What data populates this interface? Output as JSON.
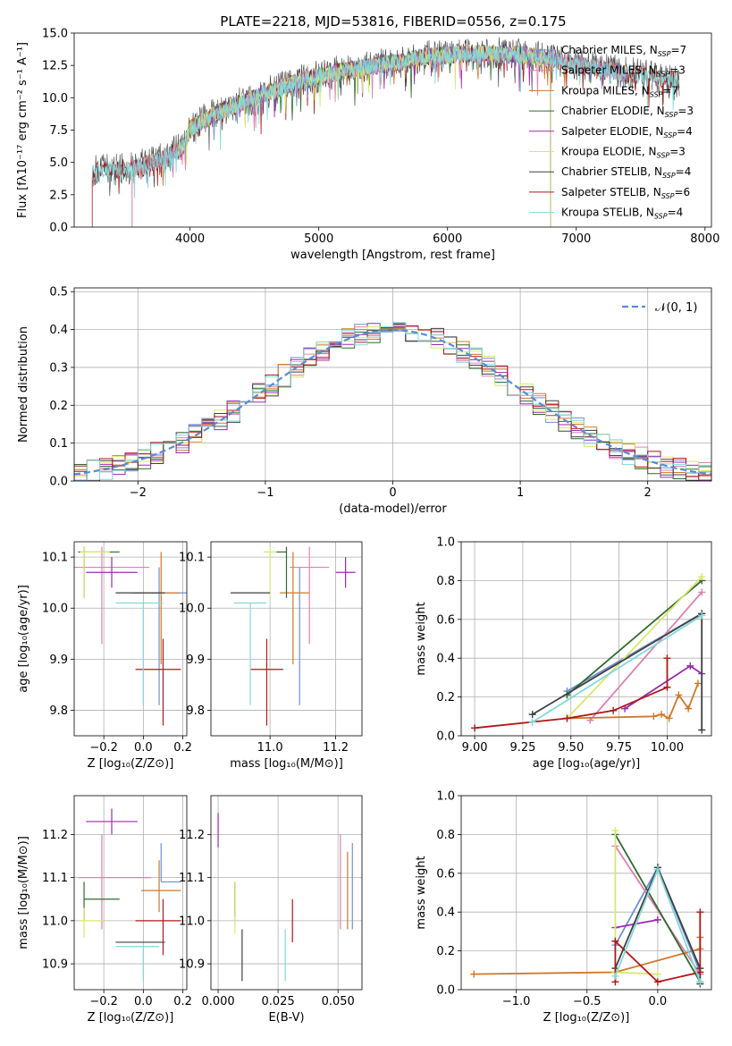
{
  "title": "PLATE=2218, MJD=53816, FIBERID=0556, z=0.175",
  "colors": {
    "Chabrier MILES": "#6f8fd8",
    "Salpeter MILES": "#e080b0",
    "Kroupa MILES": "#d0782a",
    "Chabrier ELODIE": "#2e6b2e",
    "Salpeter ELODIE": "#9a2ab0",
    "Kroupa ELODIE": "#d8e86a",
    "Chabrier STELIB": "#404040",
    "Salpeter STELIB": "#b01818",
    "Kroupa STELIB": "#82d8d8"
  },
  "chart_data": [
    {
      "id": "spectrum",
      "type": "line",
      "title": "PLATE=2218, MJD=53816, FIBERID=0556, z=0.175",
      "xlabel": "wavelength [Angstrom, rest frame]",
      "ylabel": "Flux [fλ10⁻¹⁷ erg cm⁻² s⁻¹ A⁻¹]",
      "xlim": [
        3100,
        8050
      ],
      "ylim": [
        0,
        15
      ],
      "xticks": [
        "4000",
        "5000",
        "6000",
        "7000",
        "8000"
      ],
      "yticks": [
        "0.0",
        "2.5",
        "5.0",
        "7.5",
        "10.0",
        "12.5",
        "15.0"
      ],
      "legend": "top-right",
      "continuum": [
        [
          3240,
          4.3
        ],
        [
          3400,
          4.5
        ],
        [
          3550,
          4.6
        ],
        [
          3700,
          5.0
        ],
        [
          3850,
          5.6
        ],
        [
          3950,
          6.2
        ],
        [
          4000,
          7.6
        ],
        [
          4200,
          8.8
        ],
        [
          4400,
          9.6
        ],
        [
          4600,
          10.4
        ],
        [
          4800,
          11.1
        ],
        [
          5000,
          11.7
        ],
        [
          5200,
          12.1
        ],
        [
          5400,
          12.4
        ],
        [
          5600,
          12.7
        ],
        [
          5800,
          13.1
        ],
        [
          6000,
          13.3
        ],
        [
          6200,
          13.4
        ],
        [
          6400,
          13.4
        ],
        [
          6600,
          13.3
        ],
        [
          6800,
          13.0
        ],
        [
          7000,
          12.6
        ],
        [
          7200,
          12.2
        ],
        [
          7400,
          11.9
        ],
        [
          7600,
          11.6
        ],
        [
          7800,
          11.2
        ]
      ],
      "series": [
        {
          "name": "Chabrier MILES, Nₛₛₚ=7",
          "label": "Chabrier MILES",
          "subscript": "SSP",
          "n": "7",
          "start": 3550,
          "end": 7400
        },
        {
          "name": "Salpeter MILES, Nₛₛₚ=3",
          "label": "Salpeter MILES",
          "subscript": "SSP",
          "n": "3",
          "start": 3550,
          "end": 7400
        },
        {
          "name": "Kroupa MILES, Nₛₛₚ=7",
          "label": "Kroupa MILES",
          "subscript": "SSP",
          "n": "7",
          "start": 3550,
          "end": 7400
        },
        {
          "name": "Chabrier ELODIE, Nₛₛₚ=3",
          "label": "Chabrier ELODIE",
          "subscript": "SSP",
          "n": "3",
          "start": 3900,
          "end": 6800
        },
        {
          "name": "Salpeter ELODIE, Nₛₛₚ=4",
          "label": "Salpeter ELODIE",
          "subscript": "SSP",
          "n": "4",
          "start": 3900,
          "end": 6800
        },
        {
          "name": "Kroupa ELODIE, Nₛₛₚ=3",
          "label": "Kroupa ELODIE",
          "subscript": "SSP",
          "n": "3",
          "start": 3900,
          "end": 6800
        },
        {
          "name": "Chabrier STELIB, Nₛₛₚ=4",
          "label": "Chabrier STELIB",
          "subscript": "SSP",
          "n": "4",
          "start": 3240,
          "end": 7800
        },
        {
          "name": "Salpeter STELIB, Nₛₛₚ=6",
          "label": "Salpeter STELIB",
          "subscript": "SSP",
          "n": "6",
          "start": 3240,
          "end": 7800
        },
        {
          "name": "Kroupa STELIB, Nₛₛₚ=4",
          "label": "Kroupa STELIB",
          "subscript": "SSP",
          "n": "4",
          "start": 3240,
          "end": 7800
        }
      ]
    },
    {
      "id": "residuals",
      "type": "line",
      "xlabel": "(data-model)/error",
      "ylabel": "Normed distribution",
      "xlim": [
        -2.5,
        2.5
      ],
      "ylim": [
        0,
        0.51
      ],
      "xticks": [
        "−2",
        "−1",
        "0",
        "1",
        "2"
      ],
      "yticks": [
        "0.0",
        "0.1",
        "0.2",
        "0.3",
        "0.4",
        "0.5"
      ],
      "grid": true,
      "legend": "top-right",
      "legend_label": "𝒩(0, 1)",
      "bin_width": 0.1
    },
    {
      "id": "age_vs_Z",
      "type": "scatter",
      "xlabel": "Z [log₁₀(Z/Z⊙)]",
      "ylabel": "age  [log₁₀(age/yr)]",
      "xlim": [
        -0.35,
        0.22
      ],
      "ylim": [
        9.75,
        10.13
      ],
      "xticks": [
        "−0.2",
        "0.0",
        "0.2"
      ],
      "yticks": [
        "9.8",
        "9.9",
        "10.0",
        "10.1"
      ],
      "grid": true,
      "points": [
        {
          "model": "Chabrier MILES",
          "x": 0.08,
          "y": 10.03,
          "xerr": [
            0.14,
            0.14
          ],
          "yerr": [
            0.22,
            0.05
          ]
        },
        {
          "model": "Salpeter MILES",
          "x": -0.21,
          "y": 10.08,
          "xerr": [
            0.14,
            0.24
          ],
          "yerr": [
            0.15,
            0.04
          ]
        },
        {
          "model": "Kroupa MILES",
          "x": 0.09,
          "y": 10.03,
          "xerr": [
            0.14,
            0.09
          ],
          "yerr": [
            0.14,
            0.08
          ]
        },
        {
          "model": "Chabrier ELODIE",
          "x": -0.3,
          "y": 10.11,
          "xerr": [
            0.03,
            0.18
          ],
          "yerr": [
            0.09,
            0.01
          ]
        },
        {
          "model": "Salpeter ELODIE",
          "x": -0.16,
          "y": 10.07,
          "xerr": [
            0.13,
            0.13
          ],
          "yerr": [
            0.03,
            0.03
          ]
        },
        {
          "model": "Kroupa ELODIE",
          "x": -0.3,
          "y": 10.11,
          "xerr": [
            0.02,
            0.13
          ],
          "yerr": [
            0.09,
            0.01
          ]
        },
        {
          "model": "Chabrier STELIB",
          "x": 0.0,
          "y": 10.03,
          "xerr": [
            0.14,
            0.11
          ],
          "yerr": [
            0.0,
            0.0
          ]
        },
        {
          "model": "Salpeter STELIB",
          "x": 0.1,
          "y": 9.88,
          "xerr": [
            0.14,
            0.09
          ],
          "yerr": [
            0.11,
            0.06
          ]
        },
        {
          "model": "Kroupa STELIB",
          "x": 0.0,
          "y": 10.01,
          "xerr": [
            0.14,
            0.1
          ],
          "yerr": [
            0.2,
            0.0
          ]
        }
      ]
    },
    {
      "id": "age_vs_mass",
      "type": "scatter",
      "xlabel": "mass [log₁₀(M/M⊙)]",
      "ylabel": "",
      "xlim": [
        10.82,
        11.28
      ],
      "ylim": [
        9.75,
        10.13
      ],
      "xticks": [
        "11.0",
        "11.2"
      ],
      "yticks": [
        "9.8",
        "9.9",
        "10.0",
        "10.1"
      ],
      "grid": true,
      "points": [
        {
          "model": "Chabrier MILES",
          "x": 11.09,
          "y": 10.03,
          "xerr": [
            0.0,
            0.0
          ],
          "yerr": [
            0.22,
            0.05
          ]
        },
        {
          "model": "Salpeter MILES",
          "x": 11.12,
          "y": 10.08,
          "xerr": [
            0.06,
            0.06
          ],
          "yerr": [
            0.15,
            0.04
          ]
        },
        {
          "model": "Kroupa MILES",
          "x": 11.07,
          "y": 10.03,
          "xerr": [
            0.04,
            0.05
          ],
          "yerr": [
            0.14,
            0.08
          ]
        },
        {
          "model": "Chabrier ELODIE",
          "x": 11.05,
          "y": 10.11,
          "xerr": [
            0.03,
            0.0
          ],
          "yerr": [
            0.09,
            0.01
          ]
        },
        {
          "model": "Salpeter ELODIE",
          "x": 11.23,
          "y": 10.07,
          "xerr": [
            0.03,
            0.03
          ],
          "yerr": [
            0.03,
            0.03
          ]
        },
        {
          "model": "Kroupa ELODIE",
          "x": 11.0,
          "y": 10.11,
          "xerr": [
            0.02,
            0.02
          ],
          "yerr": [
            0.09,
            0.01
          ]
        },
        {
          "model": "Chabrier STELIB",
          "x": 10.95,
          "y": 10.03,
          "xerr": [
            0.07,
            0.05
          ],
          "yerr": [
            0.0,
            0.0
          ]
        },
        {
          "model": "Salpeter STELIB",
          "x": 10.99,
          "y": 9.88,
          "xerr": [
            0.05,
            0.05
          ],
          "yerr": [
            0.11,
            0.06
          ]
        },
        {
          "model": "Kroupa STELIB",
          "x": 10.94,
          "y": 10.01,
          "xerr": [
            0.05,
            0.05
          ],
          "yerr": [
            0.2,
            0.0
          ]
        }
      ]
    },
    {
      "id": "mass_weight_vs_age",
      "type": "line",
      "xlabel": "age  [log₁₀(age/yr)]",
      "ylabel": "mass weight",
      "xlim": [
        8.93,
        10.23
      ],
      "ylim": [
        0,
        1
      ],
      "xticks": [
        "9.00",
        "9.25",
        "9.50",
        "9.75",
        "10.00"
      ],
      "yticks": [
        "0.0",
        "0.2",
        "0.4",
        "0.6",
        "0.8",
        "1.0"
      ],
      "grid": true,
      "series": [
        {
          "model": "Chabrier MILES",
          "x": [
            9.48,
            10.18
          ],
          "y": [
            0.23,
            0.63
          ]
        },
        {
          "model": "Salpeter MILES",
          "x": [
            9.6,
            10.18
          ],
          "y": [
            0.08,
            0.74
          ]
        },
        {
          "model": "Kroupa MILES",
          "x": [
            9.48,
            9.93,
            9.97,
            10.01,
            10.06,
            10.11,
            10.16
          ],
          "y": [
            0.09,
            0.1,
            0.11,
            0.09,
            0.21,
            0.14,
            0.27
          ]
        },
        {
          "model": "Chabrier ELODIE",
          "x": [
            9.48,
            10.18
          ],
          "y": [
            0.21,
            0.8
          ]
        },
        {
          "model": "Salpeter ELODIE",
          "x": [
            9.78,
            10.12,
            10.18
          ],
          "y": [
            0.14,
            0.36,
            0.32
          ]
        },
        {
          "model": "Kroupa ELODIE",
          "x": [
            9.48,
            10.18
          ],
          "y": [
            0.09,
            0.82
          ]
        },
        {
          "model": "Chabrier STELIB",
          "x": [
            9.3,
            10.18,
            10.18
          ],
          "y": [
            0.11,
            0.63,
            0.03
          ]
        },
        {
          "model": "Salpeter STELIB",
          "x": [
            9.0,
            9.48,
            9.72,
            10.0,
            10.0
          ],
          "y": [
            0.04,
            0.09,
            0.13,
            0.25,
            0.4
          ]
        },
        {
          "model": "Kroupa STELIB",
          "x": [
            9.3,
            10.18
          ],
          "y": [
            0.07,
            0.62
          ]
        }
      ]
    },
    {
      "id": "mass_vs_Z",
      "type": "scatter",
      "xlabel": "Z [log₁₀(Z/Z⊙)]",
      "ylabel": "mass [log₁₀(M/M⊙)]",
      "xlim": [
        -0.35,
        0.22
      ],
      "ylim": [
        10.84,
        11.29
      ],
      "xticks": [
        "−0.2",
        "0.0",
        "0.2"
      ],
      "yticks": [
        "10.9",
        "11.0",
        "11.1",
        "11.2"
      ],
      "grid": true,
      "points": [
        {
          "model": "Chabrier MILES",
          "x": 0.09,
          "y": 11.09,
          "xerr": [
            0.0,
            0.1
          ],
          "yerr": [
            0.0,
            0.09
          ]
        },
        {
          "model": "Salpeter MILES",
          "x": -0.21,
          "y": 11.1,
          "xerr": [
            0.12,
            0.25
          ],
          "yerr": [
            0.12,
            0.1
          ]
        },
        {
          "model": "Kroupa MILES",
          "x": 0.08,
          "y": 11.07,
          "xerr": [
            0.09,
            0.11
          ],
          "yerr": [
            0.05,
            0.07
          ]
        },
        {
          "model": "Chabrier ELODIE",
          "x": -0.3,
          "y": 11.05,
          "xerr": [
            0.0,
            0.18
          ],
          "yerr": [
            0.05,
            0.04
          ]
        },
        {
          "model": "Salpeter ELODIE",
          "x": -0.16,
          "y": 11.23,
          "xerr": [
            0.13,
            0.13
          ],
          "yerr": [
            0.03,
            0.03
          ]
        },
        {
          "model": "Kroupa ELODIE",
          "x": -0.3,
          "y": 11.0,
          "xerr": [
            0.02,
            0.1
          ],
          "yerr": [
            0.04,
            0.03
          ]
        },
        {
          "model": "Chabrier STELIB",
          "x": 0.0,
          "y": 10.95,
          "xerr": [
            0.14,
            0.11
          ],
          "yerr": [
            0.0,
            0.0
          ]
        },
        {
          "model": "Salpeter STELIB",
          "x": 0.1,
          "y": 11.0,
          "xerr": [
            0.14,
            0.09
          ],
          "yerr": [
            0.08,
            0.05
          ]
        },
        {
          "model": "Kroupa STELIB",
          "x": 0.0,
          "y": 10.94,
          "xerr": [
            0.14,
            0.08
          ],
          "yerr": [
            0.08,
            0.0
          ]
        }
      ]
    },
    {
      "id": "mass_vs_ebv",
      "type": "scatter",
      "xlabel": "E(B-V)",
      "ylabel": "",
      "xlim": [
        -0.003,
        0.06
      ],
      "ylim": [
        10.84,
        11.29
      ],
      "xticks": [
        "0.000",
        "0.025",
        "0.050"
      ],
      "yticks": [
        "10.9",
        "11.0",
        "11.1",
        "11.2"
      ],
      "grid": true,
      "points": [
        {
          "model": "Chabrier MILES",
          "x": 0.056,
          "y": 11.08,
          "xerr": [
            0.0,
            0.0
          ],
          "yerr": [
            0.1,
            0.1
          ]
        },
        {
          "model": "Salpeter MILES",
          "x": 0.051,
          "y": 11.1,
          "xerr": [
            0.0,
            0.0
          ],
          "yerr": [
            0.12,
            0.1
          ]
        },
        {
          "model": "Kroupa MILES",
          "x": 0.054,
          "y": 11.07,
          "xerr": [
            0.0,
            0.0
          ],
          "yerr": [
            0.09,
            0.09
          ]
        },
        {
          "model": "Chabrier ELODIE",
          "x": 0.007,
          "y": 11.05,
          "xerr": [
            0.0,
            0.0
          ],
          "yerr": [
            0.04,
            0.04
          ]
        },
        {
          "model": "Salpeter ELODIE",
          "x": 0.0,
          "y": 11.21,
          "xerr": [
            0.0,
            0.0
          ],
          "yerr": [
            0.04,
            0.04
          ]
        },
        {
          "model": "Kroupa ELODIE",
          "x": 0.007,
          "y": 11.03,
          "xerr": [
            0.0,
            0.0
          ],
          "yerr": [
            0.06,
            0.06
          ]
        },
        {
          "model": "Chabrier STELIB",
          "x": 0.01,
          "y": 10.92,
          "xerr": [
            0.0,
            0.0
          ],
          "yerr": [
            0.06,
            0.06
          ]
        },
        {
          "model": "Salpeter STELIB",
          "x": 0.031,
          "y": 11.0,
          "xerr": [
            0.0,
            0.0
          ],
          "yerr": [
            0.05,
            0.05
          ]
        },
        {
          "model": "Kroupa STELIB",
          "x": 0.028,
          "y": 10.92,
          "xerr": [
            0.0,
            0.0
          ],
          "yerr": [
            0.06,
            0.06
          ]
        }
      ]
    },
    {
      "id": "mass_weight_vs_Z",
      "type": "line",
      "xlabel": "Z [log₁₀(Z/Z⊙)]",
      "ylabel": "mass weight",
      "xlim": [
        -1.39,
        0.38
      ],
      "ylim": [
        0,
        1
      ],
      "xticks": [
        "−1.0",
        "−0.5",
        "0.0"
      ],
      "yticks": [
        "0.0",
        "0.2",
        "0.4",
        "0.6",
        "0.8",
        "1.0"
      ],
      "grid": true,
      "series": [
        {
          "model": "Chabrier MILES",
          "x": [
            -0.3,
            0.0,
            0.3
          ],
          "y": [
            0.23,
            0.63,
            0.09
          ]
        },
        {
          "model": "Salpeter MILES",
          "x": [
            -0.3,
            0.3
          ],
          "y": [
            0.74,
            0.08
          ]
        },
        {
          "model": "Kroupa MILES",
          "x": [
            -1.3,
            -0.3,
            0.3,
            0.3
          ],
          "y": [
            0.08,
            0.09,
            0.21,
            0.27
          ]
        },
        {
          "model": "Chabrier ELODIE",
          "x": [
            -0.3,
            0.3
          ],
          "y": [
            0.8,
            0.04
          ]
        },
        {
          "model": "Salpeter ELODIE",
          "x": [
            -0.3,
            0.0
          ],
          "y": [
            0.32,
            0.36
          ]
        },
        {
          "model": "Kroupa ELODIE",
          "x": [
            -0.3,
            -0.3,
            0.0
          ],
          "y": [
            0.82,
            0.09,
            0.08
          ]
        },
        {
          "model": "Chabrier STELIB",
          "x": [
            -0.3,
            0.0,
            0.3,
            0.3
          ],
          "y": [
            0.11,
            0.63,
            0.11,
            0.03
          ]
        },
        {
          "model": "Salpeter STELIB",
          "x": [
            -0.3,
            -0.3,
            0.0,
            0.3,
            0.3
          ],
          "y": [
            0.04,
            0.25,
            0.04,
            0.09,
            0.4
          ]
        },
        {
          "model": "Kroupa STELIB",
          "x": [
            -0.3,
            0.0,
            0.3
          ],
          "y": [
            0.07,
            0.62,
            0.04
          ]
        }
      ]
    }
  ]
}
